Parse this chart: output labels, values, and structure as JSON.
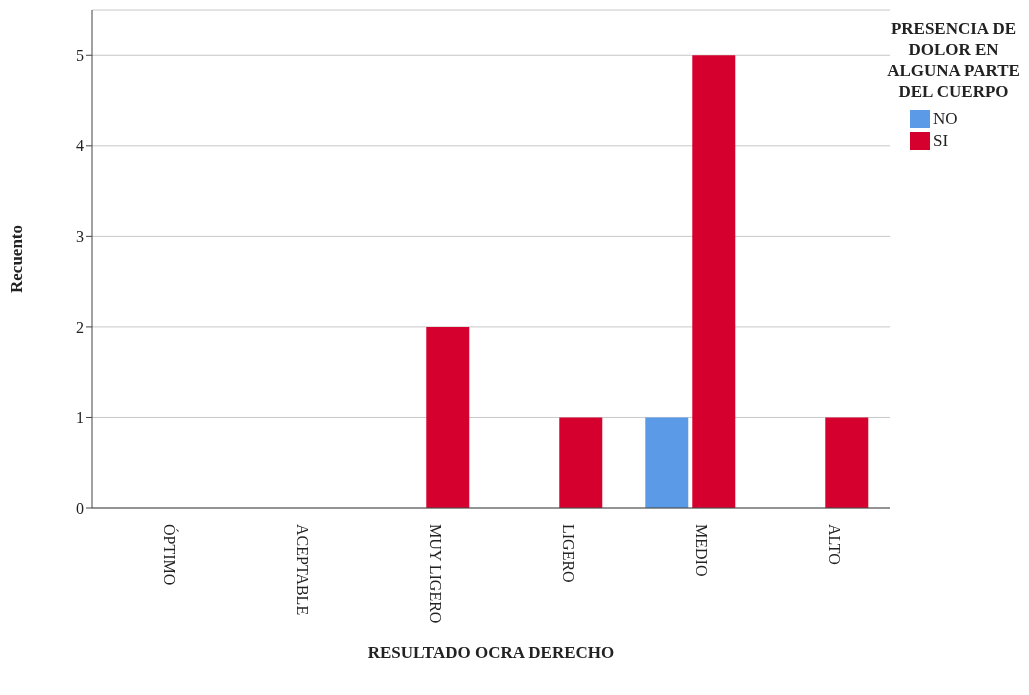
{
  "chart_data": {
    "type": "bar",
    "xlabel": "RESULTADO OCRA DERECHO",
    "ylabel": "Recuento",
    "legend_title": "PRESENCIA DE DOLOR EN ALGUNA PARTE DEL CUERPO",
    "categories": [
      "ÓPTIMO",
      "ACEPTABLE",
      "MUY LIGERO",
      "LIGERO",
      "MEDIO",
      "ALTO"
    ],
    "series": [
      {
        "name": "NO",
        "color": "#5b9ae6",
        "values": [
          0,
          0,
          0,
          0,
          1,
          0
        ]
      },
      {
        "name": "SI",
        "color": "#d6002f",
        "values": [
          0,
          0,
          2,
          1,
          5,
          1
        ]
      }
    ],
    "ylim": [
      0,
      5.5
    ],
    "yticks": [
      0,
      1,
      2,
      3,
      4,
      5
    ],
    "grid": "y",
    "legend": "top right"
  }
}
